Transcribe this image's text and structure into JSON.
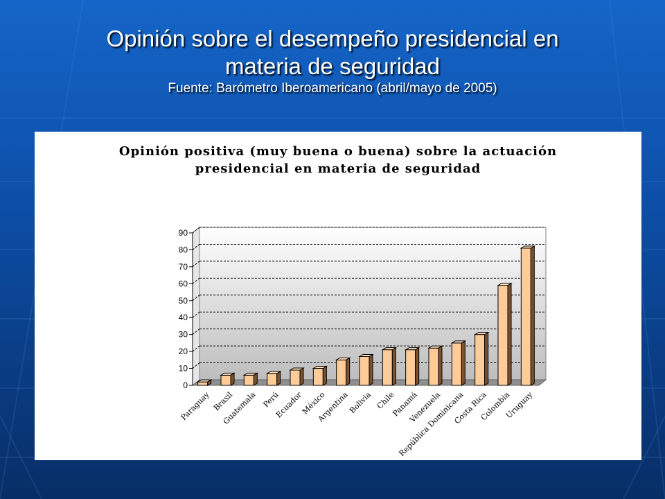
{
  "slide": {
    "title_line1": "Opinión sobre el desempeño presidencial en",
    "title_line2": "materia de seguridad",
    "subtitle": "Fuente: Barómetro Iberoamericano (abril/mayo de 2005)"
  },
  "colors": {
    "bar_face": "#ffcc99",
    "bar_side": "#7a5230",
    "bar_top": "#ffe3c4",
    "background": "#0d4fa8"
  },
  "chart_data": {
    "type": "bar",
    "title_line1": "Opinión positiva (muy buena o buena) sobre la actuación",
    "title_line2": "presidencial en materia de seguridad",
    "xlabel": "",
    "ylabel": "",
    "ylim": [
      0,
      90
    ],
    "yticks": [
      0,
      10,
      20,
      30,
      40,
      50,
      60,
      70,
      80,
      90
    ],
    "grid": true,
    "legend": "none",
    "categories": [
      "Paraguay",
      "Brasil",
      "Guatemala",
      "Perú",
      "Ecuador",
      "México",
      "Argentina",
      "Bolivia",
      "Chile",
      "Panamá",
      "Venezuela",
      "República Dominicana",
      "Costa Rica",
      "Colombia",
      "Uruguay"
    ],
    "values": [
      2,
      6,
      6,
      7,
      9,
      10,
      15,
      17,
      21,
      21,
      22,
      25,
      30,
      59,
      81
    ]
  }
}
